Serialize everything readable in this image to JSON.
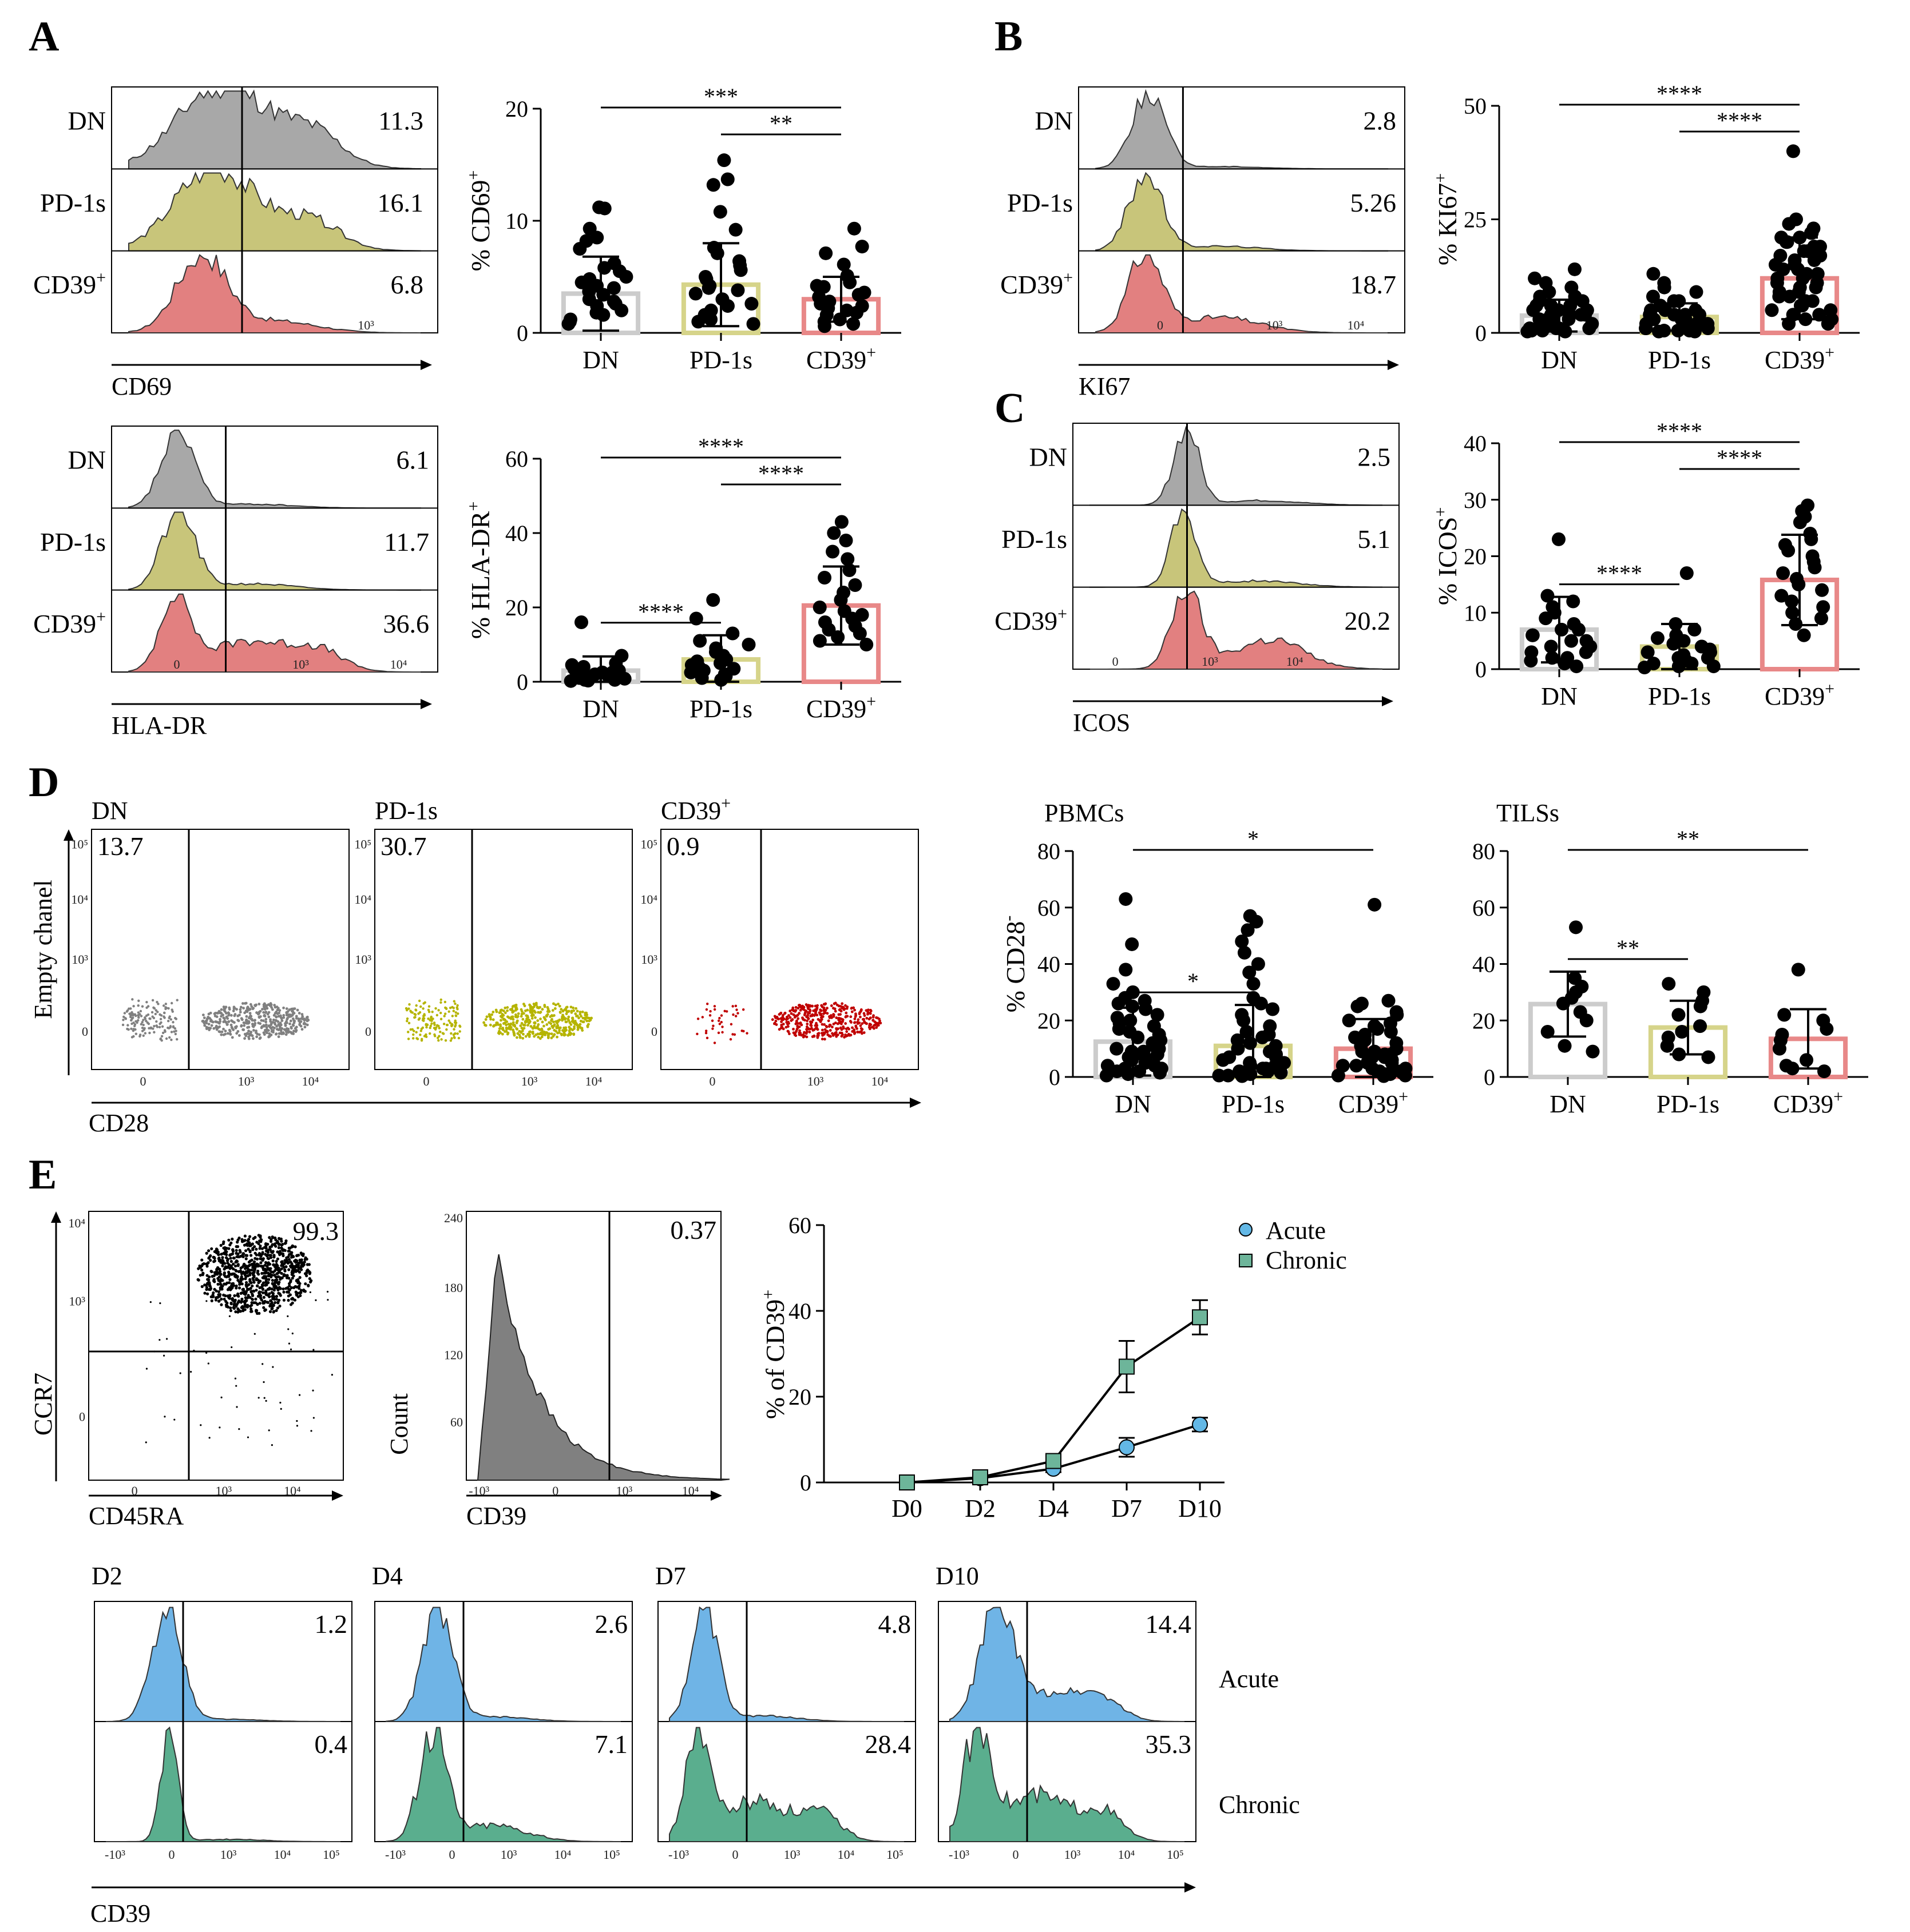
{
  "colors": {
    "dn_fill": "#a8a8a8",
    "pd1s_fill": "#c8c57a",
    "cd39_fill": "#e28080",
    "dn_bar": "#cccccc",
    "pd1s_bar": "#d6d48a",
    "cd39_bar": "#e88888",
    "dn_dots": "#808080",
    "pd1s_dots": "#b5b400",
    "cd39_dots": "#c00000",
    "acute_fill": "#6fb4e6",
    "chronic_fill": "#5aae8e",
    "acute_marker": "#63b8e6",
    "chronic_marker": "#6db59a",
    "line": "#000000"
  },
  "panels": {
    "A": {
      "label": "A",
      "cd69_hist": {
        "rows": [
          "DN",
          "PD-1s",
          "CD39+"
        ],
        "values": [
          "11.3",
          "16.1",
          "6.8"
        ],
        "xlabel": "CD69",
        "ticks": [
          "10³"
        ]
      },
      "hladr_hist": {
        "rows": [
          "DN",
          "PD-1s",
          "CD39+"
        ],
        "values": [
          "6.1",
          "11.7",
          "36.6"
        ],
        "xlabel": "HLA-DR",
        "ticks": [
          "0",
          "10³",
          "10⁴"
        ]
      }
    },
    "B": {
      "label": "B",
      "ki67_hist": {
        "rows": [
          "DN",
          "PD-1s",
          "CD39+"
        ],
        "values": [
          "2.8",
          "5.26",
          "18.7"
        ],
        "xlabel": "KI67",
        "ticks": [
          "0",
          "10³",
          "10⁴"
        ]
      }
    },
    "C": {
      "label": "C",
      "icos_hist": {
        "rows": [
          "DN",
          "PD-1s",
          "CD39+"
        ],
        "values": [
          "2.5",
          "5.1",
          "20.2"
        ],
        "xlabel": "ICOS",
        "ticks": [
          "0",
          "10³",
          "10⁴"
        ]
      }
    },
    "D": {
      "label": "D",
      "dots": {
        "titles": [
          "DN",
          "PD-1s",
          "CD39+"
        ],
        "values": [
          "13.7",
          "30.7",
          "0.9"
        ],
        "xlabel": "CD28",
        "ylabel": "Empty chanel",
        "yticks": [
          "10⁵",
          "10⁴",
          "10³",
          "0"
        ],
        "xticks": [
          "0",
          "10³",
          "10⁴"
        ]
      }
    },
    "E": {
      "label": "E",
      "ccr7_dot": {
        "value": "99.3",
        "xlabel": "CD45RA",
        "ylabel": "CCR7",
        "xticks": [
          "0",
          "10³",
          "10⁴"
        ],
        "yticks": [
          "10⁴",
          "10³",
          "0"
        ]
      },
      "cd39_hist": {
        "value": "0.37",
        "xlabel": "CD39",
        "ylabel": "Count",
        "yticks": [
          "240",
          "180",
          "120",
          "60"
        ],
        "xticks": [
          "-10³",
          "0",
          "10³",
          "10⁴"
        ]
      },
      "time_hists": {
        "days": [
          "D2",
          "D4",
          "D7",
          "D10"
        ],
        "acute": [
          "1.2",
          "2.6",
          "4.8",
          "14.4"
        ],
        "chronic": [
          "0.4",
          "7.1",
          "28.4",
          "35.3"
        ],
        "row_labels": [
          "Acute",
          "Chronic"
        ],
        "xlabel": "CD39",
        "ticks": [
          "-10³",
          "0",
          "10³",
          "10⁴",
          "10⁵"
        ]
      }
    }
  },
  "chart_data": [
    {
      "id": "A-cd69",
      "type": "bar",
      "categories": [
        "DN",
        "PD-1s",
        "CD39+"
      ],
      "values": [
        3.5,
        4.3,
        3.0
      ],
      "sd": [
        3.3,
        3.7,
        2.0
      ],
      "ylabel": "% CD69+",
      "ylim": [
        0,
        20
      ],
      "yticks": [
        "0",
        "10",
        "20"
      ],
      "brackets": [
        {
          "from": 0,
          "to": 2,
          "label": "***"
        },
        {
          "from": 1,
          "to": 2,
          "label": "**"
        }
      ],
      "points": [
        [
          11.2,
          11.1,
          9.3,
          8.5,
          8.2,
          7.5,
          6.2,
          5.8,
          5.5,
          5.0,
          4.8,
          4.5,
          4.2,
          4.0,
          3.7,
          3.4,
          3.0,
          2.8,
          2.6,
          2.4,
          2.0,
          1.8,
          1.6,
          1.2,
          1.0,
          0.8
        ],
        [
          15.4,
          13.7,
          13.2,
          10.8,
          9.2,
          7.6,
          7.1,
          6.4,
          6.0,
          5.6,
          5.0,
          4.8,
          4.2,
          4.0,
          3.8,
          3.5,
          3.0,
          2.6,
          2.4,
          2.0,
          1.6,
          1.2,
          1.0,
          0.8
        ],
        [
          9.3,
          7.7,
          7.1,
          6.1,
          5.1,
          4.5,
          4.2,
          4.1,
          3.6,
          3.4,
          3.2,
          2.8,
          2.6,
          2.4,
          2.2,
          2.0,
          1.8,
          1.6,
          1.2,
          1.0,
          0.8,
          0.6
        ]
      ]
    },
    {
      "id": "A-hladr",
      "type": "bar",
      "categories": [
        "DN",
        "PD-1s",
        "CD39+"
      ],
      "values": [
        3.0,
        6.0,
        20.5
      ],
      "sd": [
        3.8,
        6.5,
        10.5
      ],
      "ylabel": "% HLA-DR+",
      "ylim": [
        0,
        60
      ],
      "yticks": [
        "0",
        "20",
        "40",
        "60"
      ],
      "brackets": [
        {
          "from": 0,
          "to": 2,
          "label": "****"
        },
        {
          "from": 1,
          "to": 2,
          "label": "****"
        },
        {
          "from": 0,
          "to": 1,
          "label": "****"
        }
      ],
      "points": [
        [
          16,
          7,
          5,
          4.5,
          4,
          3.5,
          3,
          3,
          2.5,
          2.5,
          2,
          2,
          1.5,
          1.5,
          1,
          1,
          0.8,
          0.5,
          0.5,
          0.3,
          0.2
        ],
        [
          22,
          17,
          13,
          11,
          10,
          9,
          8,
          7,
          6.5,
          6,
          5.5,
          5,
          4.5,
          4,
          3.5,
          3,
          2.5,
          2,
          1.5,
          1,
          0.5
        ],
        [
          43,
          40,
          38,
          35,
          33,
          30,
          28,
          26,
          24,
          22,
          20,
          19,
          18,
          17,
          16,
          15,
          14,
          13,
          12,
          11,
          10
        ]
      ]
    },
    {
      "id": "B-ki67",
      "type": "bar",
      "categories": [
        "DN",
        "PD-1s",
        "CD39+"
      ],
      "values": [
        3.8,
        3.5,
        12.0
      ],
      "sd": [
        3.5,
        3.0,
        9.0
      ],
      "ylabel": "% KI67+",
      "ylim": [
        0,
        50
      ],
      "yticks": [
        "0",
        "25",
        "50"
      ],
      "brackets": [
        {
          "from": 0,
          "to": 2,
          "label": "****"
        },
        {
          "from": 1,
          "to": 2,
          "label": "****"
        }
      ],
      "points": [
        [
          14,
          12,
          11,
          10,
          9,
          8,
          8,
          7,
          7,
          6,
          6,
          6,
          5,
          5,
          5,
          4,
          4,
          4,
          4,
          3,
          3,
          3,
          3,
          2,
          2,
          2,
          2,
          1,
          1,
          1,
          1,
          0.5,
          0.5,
          0.5,
          0.3,
          0.3
        ],
        [
          13,
          11,
          10,
          9,
          8,
          7,
          7,
          6,
          6,
          5,
          5,
          5,
          4,
          4,
          4,
          4,
          3,
          3,
          3,
          3,
          2,
          2,
          2,
          2,
          1,
          1,
          1,
          1,
          0.5,
          0.5,
          0.5,
          0.3,
          0.3
        ],
        [
          40,
          25,
          24,
          23,
          22,
          22,
          21,
          21,
          20,
          20,
          19,
          19,
          18,
          18,
          17,
          17,
          16,
          16,
          15,
          15,
          14,
          14,
          13,
          13,
          12,
          12,
          11,
          11,
          10,
          10,
          9,
          9,
          8,
          8,
          7,
          7,
          6,
          6,
          5,
          5,
          4,
          4,
          3,
          3,
          2,
          2
        ]
      ]
    },
    {
      "id": "C-icos",
      "type": "bar",
      "categories": [
        "DN",
        "PD-1s",
        "CD39+"
      ],
      "values": [
        7.0,
        4.0,
        15.8
      ],
      "sd": [
        5.8,
        4.0,
        8.0
      ],
      "ylabel": "% ICOS+",
      "ylim": [
        0,
        40
      ],
      "yticks": [
        "0",
        "10",
        "20",
        "30",
        "40"
      ],
      "brackets": [
        {
          "from": 0,
          "to": 2,
          "label": "****"
        },
        {
          "from": 1,
          "to": 2,
          "label": "****"
        },
        {
          "from": 0,
          "to": 1,
          "label": "****"
        }
      ],
      "points": [
        [
          23,
          13,
          12,
          11,
          10,
          9,
          8,
          7,
          7,
          6,
          6,
          5,
          5,
          4,
          4,
          3,
          3,
          2,
          2,
          1.5,
          1,
          0.5
        ],
        [
          17,
          8,
          7,
          6,
          5.5,
          5,
          4.5,
          4,
          4,
          3.5,
          3,
          3,
          2.5,
          2,
          2,
          1.5,
          1,
          1,
          0.5,
          0.5,
          0.3
        ],
        [
          29,
          28,
          27,
          26,
          24,
          23,
          22,
          21,
          20,
          19,
          18,
          17,
          16,
          15,
          14,
          13,
          12,
          11,
          10,
          9,
          8,
          6
        ]
      ]
    },
    {
      "id": "D-pbmc",
      "type": "bar",
      "title": "PBMCs",
      "categories": [
        "DN",
        "PD-1s",
        "CD39+"
      ],
      "values": [
        12.5,
        11.0,
        10.0
      ],
      "sd": [
        12.0,
        14.5,
        10.5
      ],
      "ylabel": "% CD28-",
      "ylim": [
        0,
        80
      ],
      "yticks": [
        "0",
        "20",
        "40",
        "60",
        "80"
      ],
      "brackets": [
        {
          "from": 0,
          "to": 2,
          "label": "*"
        },
        {
          "from": 0,
          "to": 1,
          "label": "*"
        }
      ],
      "points": [
        [
          63,
          47,
          38,
          33,
          30,
          28,
          27,
          26,
          25,
          24,
          22,
          21,
          20,
          19,
          18,
          17,
          16,
          15,
          14,
          13,
          12,
          11,
          10,
          10,
          9,
          9,
          8,
          8,
          7,
          7,
          6,
          6,
          5,
          5,
          4,
          4,
          3,
          3,
          2,
          2,
          1.5,
          1,
          0.5
        ],
        [
          57,
          55,
          52,
          48,
          44,
          40,
          37,
          33,
          28,
          26,
          24,
          22,
          20,
          18,
          16,
          15,
          14,
          13,
          12,
          11,
          10,
          9,
          8,
          7,
          7,
          6,
          5,
          5,
          4,
          4,
          3,
          3,
          2,
          2,
          1.5,
          1,
          1,
          0.5,
          0.5,
          0.3
        ],
        [
          61,
          27,
          26,
          25,
          23,
          22,
          20,
          19,
          18,
          17,
          16,
          15,
          14,
          13,
          12,
          11,
          10,
          9,
          9,
          8,
          8,
          7,
          7,
          6,
          5,
          5,
          4,
          4,
          3,
          3,
          2,
          2,
          1.5,
          1,
          1,
          0.5,
          0.5,
          0.3
        ]
      ]
    },
    {
      "id": "D-tils",
      "type": "bar",
      "title": "TILSs",
      "categories": [
        "DN",
        "PD-1s",
        "CD39+"
      ],
      "values": [
        25.8,
        17.5,
        13.5
      ],
      "sd": [
        11.5,
        9.5,
        10.5
      ],
      "ylabel": "",
      "ylim": [
        0,
        80
      ],
      "yticks": [
        "0",
        "20",
        "40",
        "60",
        "80"
      ],
      "brackets": [
        {
          "from": 0,
          "to": 2,
          "label": "**"
        },
        {
          "from": 0,
          "to": 1,
          "label": "**"
        }
      ],
      "points": [
        [
          53,
          35,
          32,
          30,
          28,
          26,
          23,
          20,
          16,
          11,
          9
        ],
        [
          33,
          30,
          27,
          25,
          22,
          18,
          16,
          14,
          11,
          8,
          7
        ],
        [
          38,
          22,
          20,
          17,
          15,
          13,
          10,
          6,
          4,
          3,
          2
        ]
      ]
    },
    {
      "id": "E-time",
      "type": "line",
      "x": [
        "D0",
        "D2",
        "D4",
        "D7",
        "D10"
      ],
      "series": [
        {
          "name": "Acute",
          "values": [
            0,
            1.0,
            3.2,
            8.2,
            13.5
          ],
          "sd": [
            0.3,
            0.6,
            0.8,
            2.2,
            1.6
          ]
        },
        {
          "name": "Chronic",
          "values": [
            0,
            1.2,
            5.0,
            27.0,
            38.5
          ],
          "sd": [
            0.3,
            0.7,
            1.4,
            6.0,
            4.0
          ]
        }
      ],
      "ylabel": "% of CD39+",
      "ylim": [
        0,
        60
      ],
      "yticks": [
        "0",
        "20",
        "40",
        "60"
      ]
    }
  ],
  "display": {
    "ylabels": {
      "cd69_main": "% CD69",
      "cd69_sup": "+",
      "hladr_main": "% HLA-DR",
      "hladr_sup": "+",
      "ki67_main": "% KI67",
      "ki67_sup": "+",
      "icos_main": "% ICOS",
      "icos_sup": "+",
      "cd28_main": "% CD28",
      "cd28_sup": "-",
      "time_main": "% of CD39",
      "time_sup": "+"
    },
    "cat_main": [
      "DN",
      "PD-1s",
      "CD39"
    ],
    "cat_sup": [
      "",
      "",
      "+"
    ],
    "row_main": [
      "DN",
      "PD-1s",
      "CD39"
    ],
    "row_sup": [
      "",
      "",
      "+"
    ]
  }
}
